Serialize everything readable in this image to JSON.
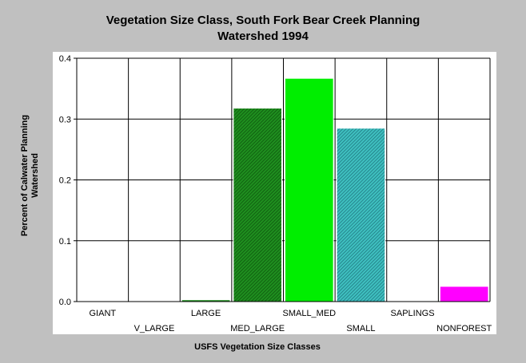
{
  "chart_data": {
    "type": "bar",
    "title_lines": [
      "Vegetation Size Class, South Fork Bear Creek Planning",
      "Watershed 1994"
    ],
    "xlabel": "USFS Vegetation Size Classes",
    "ylabel_lines": [
      "Percent of Calwater Planning",
      "Watershed"
    ],
    "categories": [
      "GIANT",
      "V_LARGE",
      "LARGE",
      "MED_LARGE",
      "SMALL_MED",
      "SMALL",
      "SAPLINGS",
      "NONFOREST"
    ],
    "values": [
      0,
      0,
      0.003,
      0.318,
      0.367,
      0.285,
      0,
      0.025
    ],
    "colors": [
      "#1a6e1a",
      "#1a6e1a",
      "#1f8f1f",
      "#1f8f1f",
      "#00ee00",
      "#2aa8a8",
      "#c000c0",
      "#ff00ff"
    ],
    "hatched": [
      false,
      false,
      false,
      true,
      false,
      true,
      false,
      false
    ],
    "ylim": [
      0,
      0.4
    ],
    "yticks": [
      "0.0",
      "0.1",
      "0.2",
      "0.3",
      "0.4"
    ],
    "grid": true,
    "legend": "none"
  }
}
